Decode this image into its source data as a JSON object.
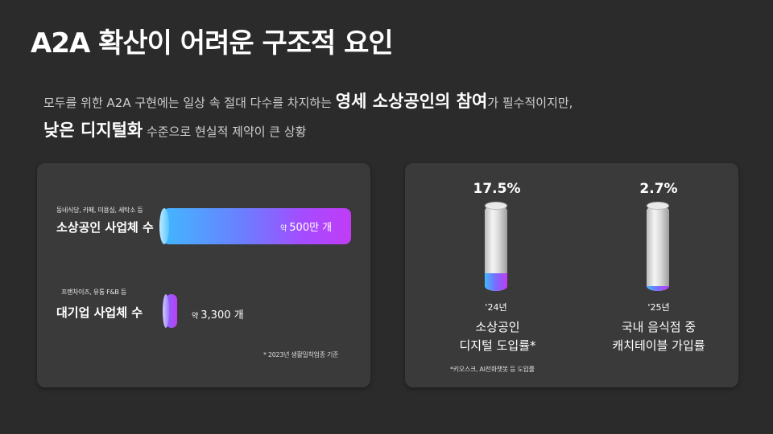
{
  "title": "A2A 확산이 어려운 구조적 요인",
  "subtitle": {
    "line1_pre": "모두를 위한 A2A 구현에는 일상 속 절대 다수를 차지하는 ",
    "line1_strong": "영세 소상공인의 참여",
    "line1_post": "가 필수적이지만,",
    "line2_strong": "낮은 디지털화",
    "line2_post": " 수준으로  현실적 제약이 큰 상황"
  },
  "left_card": {
    "row1": {
      "small": "동네식당, 카페, 미용실, 세탁소 등",
      "label": "소상공인 사업체 수",
      "value_prefix": "약",
      "value": "500만 개",
      "value_num": 5000000
    },
    "row2": {
      "small": "프랜차이즈, 유통 F&B 등",
      "label": "대기업 사업체 수",
      "value_prefix": "약",
      "value": "3,300 개",
      "value_num": 3300
    },
    "note": "* 2023년 생활밀착업종 기준"
  },
  "right_card": {
    "item1": {
      "percent": "17.5%",
      "fill": 0.175,
      "year": "'24년",
      "line1": "소상공인",
      "line2": "디지털 도입률*"
    },
    "item2": {
      "percent": "2.7%",
      "fill": 0.027,
      "year": "'25년",
      "line1": "국내 음식점 중",
      "line2": "캐치테이블 가입률"
    },
    "note": "*키오스크, AI전화챗봇 등 도입률"
  },
  "colors": {
    "background": "#2b2b2b",
    "card": "#3a3a3a",
    "gradient_start": "#41b7ff",
    "gradient_end": "#c03cf5"
  }
}
